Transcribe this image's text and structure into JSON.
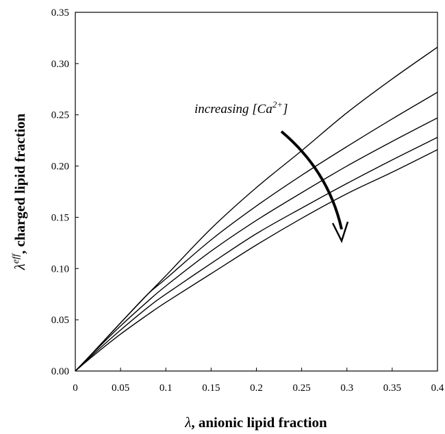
{
  "chart_data": {
    "type": "line",
    "title": "",
    "xlabel_symbol": "λ",
    "xlabel_text": ", anionic lipid fraction",
    "ylabel_symbol": "λ",
    "ylabel_superscript": "eff",
    "ylabel_text": ", charged lipid fraction",
    "xlim": [
      0,
      0.4
    ],
    "ylim": [
      0,
      0.35
    ],
    "xticks": [
      0,
      0.05,
      0.1,
      0.15,
      0.2,
      0.25,
      0.3,
      0.35,
      0.4
    ],
    "xtick_labels": [
      "0",
      "0.05",
      "0.1",
      "0.15",
      "0.2",
      "0.25",
      "0.3",
      "0.35",
      "0.4"
    ],
    "yticks": [
      0,
      0.05,
      0.1,
      0.15,
      0.2,
      0.25,
      0.3,
      0.35
    ],
    "ytick_labels": [
      "0.00",
      "0.05",
      "0.10",
      "0.15",
      "0.20",
      "0.25",
      "0.30",
      "0.35"
    ],
    "grid": false,
    "legend": "none",
    "line_color": "#000000",
    "x": [
      0,
      0.02,
      0.05,
      0.08,
      0.1,
      0.15,
      0.2,
      0.25,
      0.3,
      0.35,
      0.4
    ],
    "series": [
      {
        "values": [
          0,
          0.0185,
          0.047,
          0.075,
          0.093,
          0.139,
          0.179,
          0.215,
          0.252,
          0.285,
          0.316
        ]
      },
      {
        "values": [
          0,
          0.0185,
          0.047,
          0.075,
          0.09,
          0.128,
          0.161,
          0.191,
          0.219,
          0.246,
          0.272
        ]
      },
      {
        "values": [
          0,
          0.018,
          0.044,
          0.068,
          0.083,
          0.117,
          0.147,
          0.174,
          0.2,
          0.224,
          0.247
        ]
      },
      {
        "values": [
          0,
          0.0165,
          0.04,
          0.062,
          0.075,
          0.105,
          0.134,
          0.159,
          0.183,
          0.206,
          0.228
        ]
      },
      {
        "values": [
          0,
          0.015,
          0.036,
          0.055,
          0.067,
          0.095,
          0.123,
          0.149,
          0.173,
          0.194,
          0.216
        ]
      }
    ],
    "annotations": [
      {
        "text_prefix": "increasing [Ca",
        "superscript": "2+",
        "text_suffix": "]"
      }
    ]
  }
}
